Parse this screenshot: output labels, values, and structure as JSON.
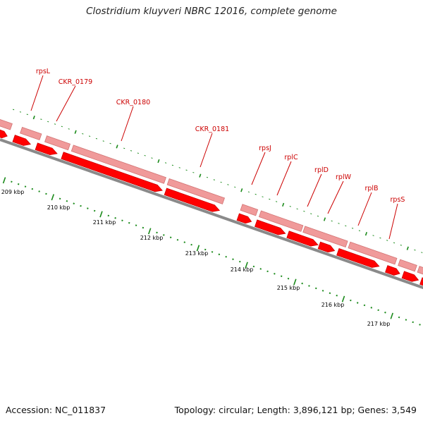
{
  "title": "Clostridium kluyveri NBRC 12016, complete genome",
  "footer": {
    "accession": "Accession: NC_011837",
    "summary": "Topology: circular; Length: 3,896,121 bp; Genes: 3,549"
  },
  "colors": {
    "gene_fill": "#ff0000",
    "gene_fill_dark": "#cc0000",
    "feature_fill": "#f09a9a",
    "feature_fill_dark": "#d27474",
    "backbone": "#8a8a8a",
    "tick": "#1a8a1a",
    "label": "#cc0000"
  },
  "ticks": [
    "209 kbp",
    "210 kbp",
    "211 kbp",
    "212 kbp",
    "213 kbp",
    "214 kbp",
    "215 kbp",
    "216 kbp",
    "217 kbp"
  ],
  "genes": [
    "rpsL",
    "CKR_0179",
    "CKR_0180",
    "CKR_0181",
    "rpsJ",
    "rplC",
    "rplD",
    "rplW",
    "rplB",
    "rpsS"
  ]
}
